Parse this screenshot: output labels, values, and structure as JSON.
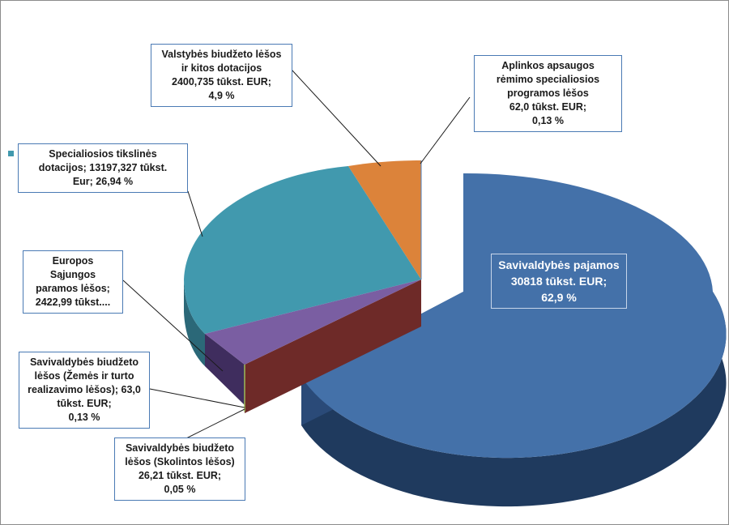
{
  "chart_data": {
    "type": "pie",
    "style": "3d-exploded",
    "title": "",
    "unit": "tūkst. EUR",
    "slices": [
      {
        "name": "Savivaldybės pajamos",
        "value": 30818,
        "percent": 62.9,
        "color": "#4471a9",
        "label": "Savivaldybės pajamos\n30818 tūkst. EUR;\n62,9 %"
      },
      {
        "name": "Savivaldybės biudžeto lėšos (Skolintos lėšos)",
        "value": 26.21,
        "percent": 0.05,
        "color": "#9c3c3a",
        "label": "Savivaldybės biudžeto\nlėšos (Skolintos lėšos)\n26,21 tūkst. EUR;\n0,05 %"
      },
      {
        "name": "Savivaldybės biudžeto lėšos (Žemės ir turto realizavimo lėšos)",
        "value": 63.0,
        "percent": 0.13,
        "color": "#9bbb59",
        "label": "Savivaldybės biudžeto\nlėšos (Žemės ir turto\nrealizavimo lėšos); 63,0\ntūkst. EUR;\n0,13 %"
      },
      {
        "name": "Europos Sąjungos paramos lėšos",
        "value": 2422.99,
        "percent": 4.95,
        "color": "#7a5ea2",
        "label": "Europos\nSąjungos\nparamos lėšos;\n2422,99 tūkst...."
      },
      {
        "name": "Specialiosios tikslinės dotacijos",
        "value": 13197.327,
        "percent": 26.94,
        "color": "#4199ae",
        "label": "Specialiosios tikslinės\ndotacijos; 13197,327 tūkst.\nEur; 26,94 %"
      },
      {
        "name": "Valstybės biudžeto lėšos ir kitos dotacijos",
        "value": 2400.735,
        "percent": 4.9,
        "color": "#dc833a",
        "label": "Valstybės biudžeto lėšos\nir kitos dotacijos\n2400,735 tūkst. EUR;\n4,9 %"
      },
      {
        "name": "Aplinkos apsaugos rėmimo specialiosios programos lėšos",
        "value": 62.0,
        "percent": 0.13,
        "color": "#4f81bd",
        "label": "Aplinkos apsaugos\nrėmimo specialiosios\nprogramos lėšos\n62,0 tūkst. EUR;\n0,13 %"
      }
    ]
  }
}
